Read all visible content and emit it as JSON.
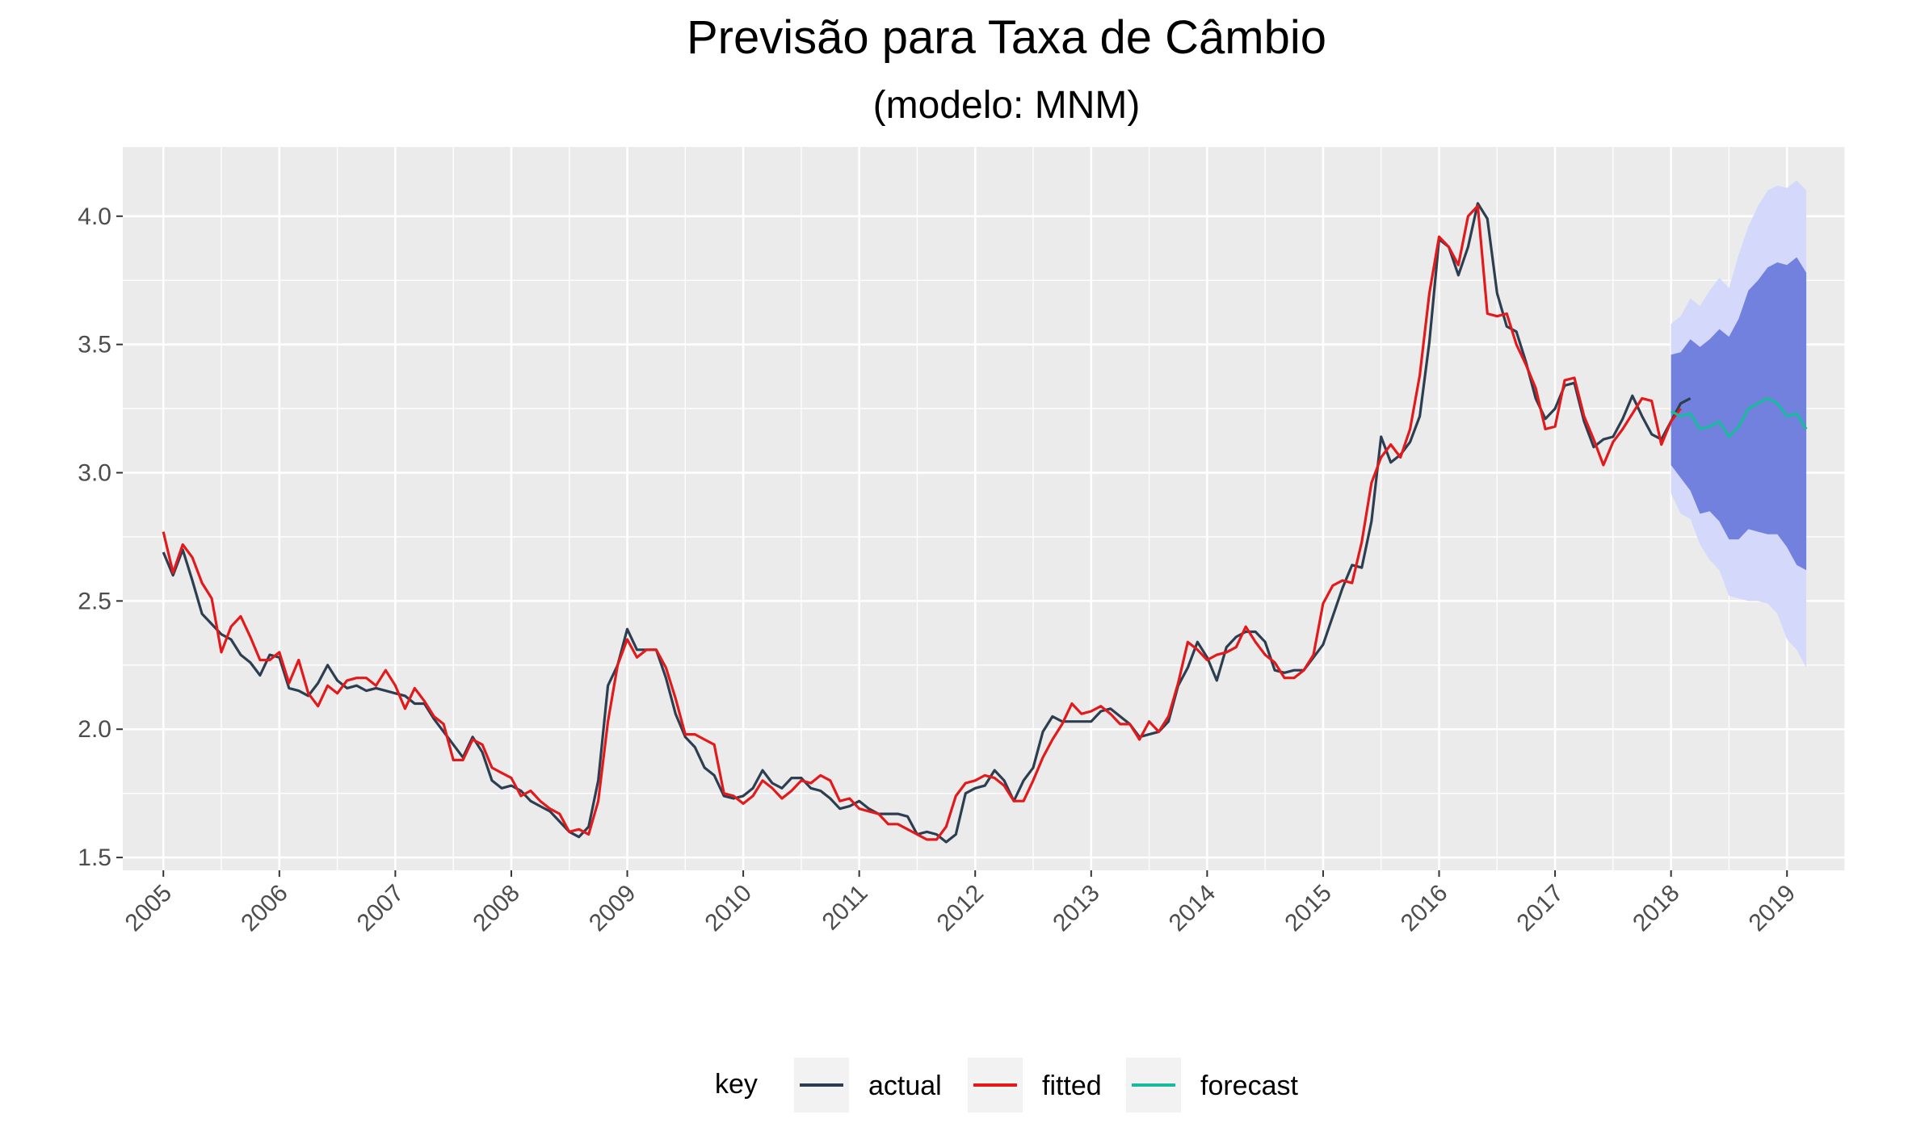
{
  "chart_data": {
    "type": "line",
    "title": "Previsão para Taxa de Câmbio",
    "subtitle": "(modelo: MNM)",
    "xlabel": "",
    "ylabel": "",
    "x_ticks": [
      "2005",
      "2006",
      "2007",
      "2008",
      "2009",
      "2010",
      "2011",
      "2012",
      "2013",
      "2014",
      "2015",
      "2016",
      "2017",
      "2018",
      "2019"
    ],
    "y_ticks": [
      "1.5",
      "2.0",
      "2.5",
      "3.0",
      "3.5",
      "4.0"
    ],
    "ylim": [
      1.45,
      4.27
    ],
    "grid": true,
    "legend_position": "bottom",
    "legend": {
      "title": "key",
      "entries": [
        "actual",
        "fitted",
        "forecast"
      ]
    },
    "colors": {
      "actual": "#2c3e50",
      "fitted": "#e31a1c",
      "forecast": "#18bc9c",
      "band_80": "#7281dd",
      "band_95": "#d4d9fb",
      "panel": "#ebebeb",
      "grid": "#ffffff"
    },
    "series": [
      {
        "name": "actual",
        "start": "2005-01",
        "frequency": "monthly",
        "values": [
          2.69,
          2.6,
          2.7,
          2.58,
          2.45,
          2.41,
          2.37,
          2.35,
          2.29,
          2.26,
          2.21,
          2.29,
          2.28,
          2.16,
          2.15,
          2.13,
          2.18,
          2.25,
          2.19,
          2.16,
          2.17,
          2.15,
          2.16,
          2.15,
          2.14,
          2.13,
          2.1,
          2.1,
          2.04,
          1.99,
          1.94,
          1.89,
          1.97,
          1.91,
          1.8,
          1.77,
          1.78,
          1.76,
          1.72,
          1.7,
          1.68,
          1.64,
          1.6,
          1.58,
          1.62,
          1.8,
          2.17,
          2.25,
          2.39,
          2.31,
          2.31,
          2.31,
          2.2,
          2.06,
          1.97,
          1.93,
          1.85,
          1.82,
          1.74,
          1.73,
          1.74,
          1.77,
          1.84,
          1.79,
          1.77,
          1.81,
          1.81,
          1.77,
          1.76,
          1.73,
          1.69,
          1.7,
          1.72,
          1.69,
          1.67,
          1.67,
          1.67,
          1.66,
          1.59,
          1.6,
          1.59,
          1.56,
          1.59,
          1.75,
          1.77,
          1.78,
          1.84,
          1.8,
          1.72,
          1.8,
          1.85,
          1.99,
          2.05,
          2.03,
          2.03,
          2.03,
          2.03,
          2.07,
          2.08,
          2.05,
          2.02,
          1.97,
          1.98,
          1.99,
          2.03,
          2.17,
          2.24,
          2.34,
          2.28,
          2.19,
          2.32,
          2.36,
          2.38,
          2.38,
          2.34,
          2.23,
          2.22,
          2.23,
          2.23,
          2.28,
          2.33,
          2.44,
          2.55,
          2.64,
          2.63,
          2.81,
          3.14,
          3.04,
          3.07,
          3.12,
          3.22,
          3.51,
          3.91,
          3.88,
          3.77,
          3.88,
          4.05,
          3.99,
          3.7,
          3.57,
          3.55,
          3.43,
          3.29,
          3.21,
          3.25,
          3.34,
          3.35,
          3.2,
          3.1,
          3.13,
          3.14,
          3.21,
          3.3,
          3.22,
          3.15,
          3.13,
          3.2,
          3.27,
          3.29
        ]
      },
      {
        "name": "fitted",
        "start": "2005-01",
        "frequency": "monthly",
        "values": [
          2.77,
          2.61,
          2.72,
          2.67,
          2.57,
          2.51,
          2.3,
          2.4,
          2.44,
          2.36,
          2.27,
          2.27,
          2.3,
          2.18,
          2.27,
          2.14,
          2.09,
          2.17,
          2.14,
          2.19,
          2.2,
          2.2,
          2.17,
          2.23,
          2.17,
          2.08,
          2.16,
          2.11,
          2.05,
          2.02,
          1.88,
          1.88,
          1.96,
          1.94,
          1.85,
          1.83,
          1.81,
          1.74,
          1.76,
          1.72,
          1.69,
          1.67,
          1.6,
          1.61,
          1.59,
          1.72,
          2.03,
          2.25,
          2.35,
          2.28,
          2.31,
          2.31,
          2.24,
          2.12,
          1.98,
          1.98,
          1.96,
          1.94,
          1.75,
          1.74,
          1.71,
          1.74,
          1.8,
          1.77,
          1.73,
          1.76,
          1.8,
          1.79,
          1.82,
          1.8,
          1.72,
          1.73,
          1.69,
          1.68,
          1.67,
          1.63,
          1.63,
          1.61,
          1.59,
          1.57,
          1.57,
          1.62,
          1.74,
          1.79,
          1.8,
          1.82,
          1.81,
          1.78,
          1.72,
          1.72,
          1.8,
          1.89,
          1.96,
          2.02,
          2.1,
          2.06,
          2.07,
          2.09,
          2.06,
          2.02,
          2.02,
          1.96,
          2.03,
          1.99,
          2.05,
          2.18,
          2.34,
          2.31,
          2.27,
          2.29,
          2.3,
          2.32,
          2.4,
          2.34,
          2.29,
          2.26,
          2.2,
          2.2,
          2.23,
          2.29,
          2.49,
          2.56,
          2.58,
          2.57,
          2.73,
          2.96,
          3.06,
          3.11,
          3.06,
          3.17,
          3.38,
          3.7,
          3.92,
          3.88,
          3.81,
          4.0,
          4.04,
          3.62,
          3.61,
          3.62,
          3.5,
          3.42,
          3.33,
          3.17,
          3.18,
          3.36,
          3.37,
          3.22,
          3.13,
          3.03,
          3.12,
          3.17,
          3.23,
          3.29,
          3.28,
          3.11,
          3.2,
          3.25
        ]
      },
      {
        "name": "forecast",
        "start": "2018-01",
        "frequency": "monthly",
        "values": [
          3.24,
          3.22,
          3.23,
          3.17,
          3.18,
          3.2,
          3.14,
          3.18,
          3.25,
          3.27,
          3.29,
          3.27,
          3.22,
          3.23,
          3.17
        ],
        "lower_80": [
          3.03,
          2.98,
          2.93,
          2.84,
          2.85,
          2.81,
          2.74,
          2.74,
          2.78,
          2.77,
          2.76,
          2.76,
          2.71,
          2.64,
          2.62
        ],
        "upper_80": [
          3.46,
          3.47,
          3.52,
          3.49,
          3.52,
          3.56,
          3.53,
          3.6,
          3.71,
          3.75,
          3.8,
          3.82,
          3.81,
          3.84,
          3.78
        ],
        "lower_95": [
          2.92,
          2.84,
          2.82,
          2.72,
          2.66,
          2.62,
          2.52,
          2.51,
          2.5,
          2.5,
          2.49,
          2.45,
          2.35,
          2.31,
          2.24
        ],
        "upper_95": [
          3.58,
          3.61,
          3.68,
          3.65,
          3.71,
          3.76,
          3.72,
          3.85,
          3.96,
          4.04,
          4.1,
          4.12,
          4.11,
          4.14,
          4.1
        ]
      }
    ]
  }
}
